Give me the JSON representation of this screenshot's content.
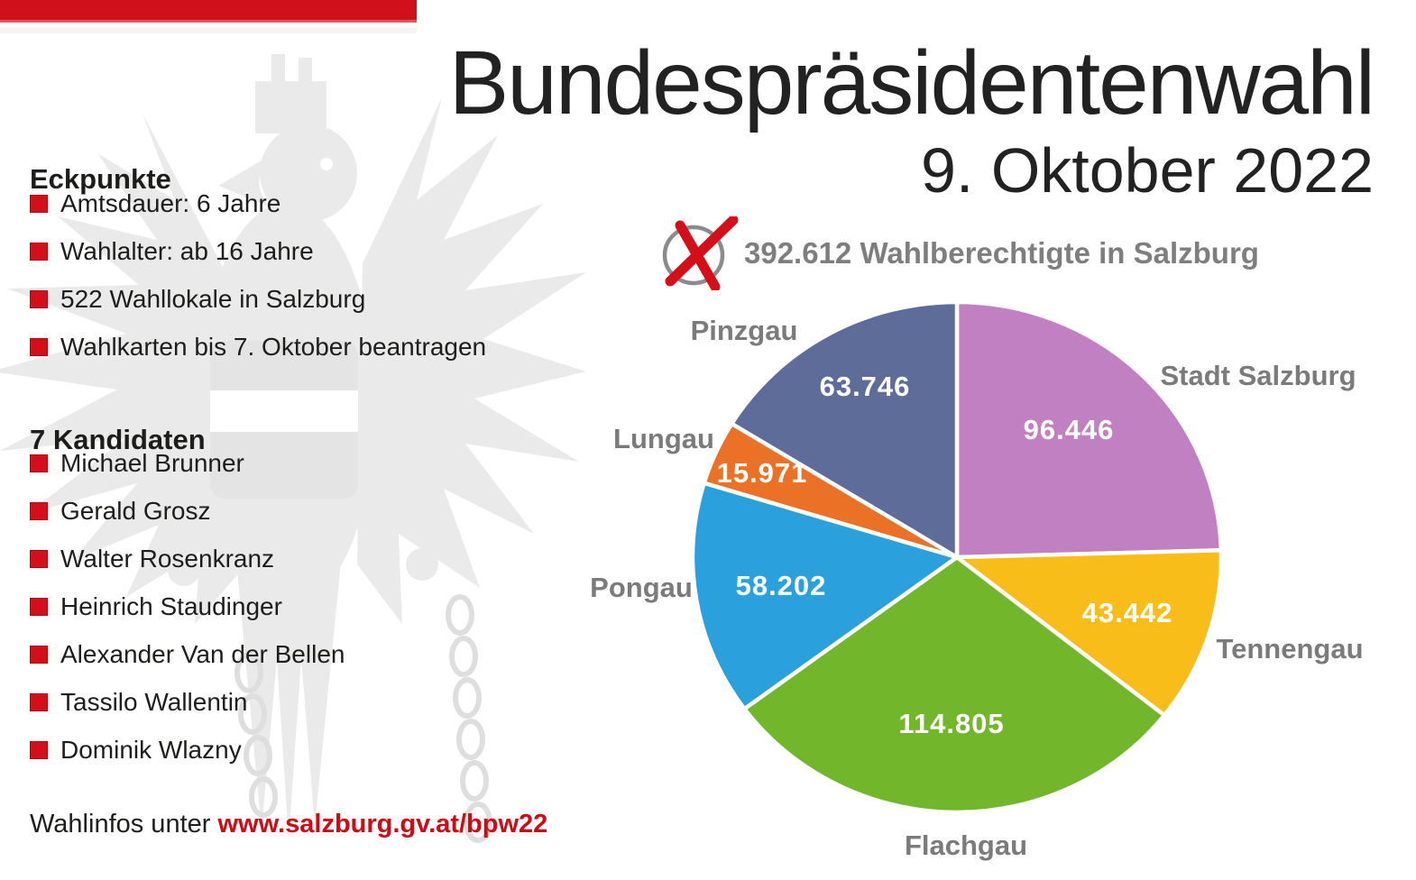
{
  "header": {
    "title": "Bundespräsidentenwahl",
    "date": "9. Oktober 2022"
  },
  "eckpunkte": {
    "heading": "Eckpunkte",
    "items": [
      "Amtsdauer: 6 Jahre",
      "Wahlalter: ab 16 Jahre",
      "522 Wahllokale in Salzburg",
      "Wahlkarten bis 7. Oktober beantragen"
    ]
  },
  "kandidaten": {
    "heading": "7 Kandidaten",
    "items": [
      "Michael Brunner",
      "Gerald Grosz",
      "Walter Rosenkranz",
      "Heinrich Staudinger",
      "Alexander Van der Bellen",
      "Tassilo Wallentin",
      "Dominik Wlazny"
    ]
  },
  "footer": {
    "text": "Wahlinfos unter",
    "link": "www.salzburg.gv.at/bpw22"
  },
  "chart_data": {
    "type": "pie",
    "title": "392.612 Wahlberechtigte in Salzburg",
    "total": 392612,
    "total_label": "392.612",
    "categories": [
      "Stadt Salzburg",
      "Tennengau",
      "Flachgau",
      "Pongau",
      "Lungau",
      "Pinzgau"
    ],
    "values": [
      96446,
      43442,
      114805,
      58202,
      15971,
      63746
    ],
    "value_labels": [
      "96.446",
      "43.442",
      "114.805",
      "58.202",
      "15.971",
      "63.746"
    ],
    "colors": [
      "#c180c1",
      "#f9bd19",
      "#72b62c",
      "#2aa0dc",
      "#ea7125",
      "#5e6c9a"
    ],
    "start_angle_deg": 0,
    "direction": "clockwise",
    "legend_position": "labels-around-pie"
  },
  "icons": {
    "ballot_x": "ballot-x-icon",
    "bullet": "red-square-bullet",
    "eagle": "austrian-eagle-watermark"
  },
  "colors": {
    "accent_red": "#d0111b",
    "label_gray": "#7b7b7b",
    "text_black": "#1d1d1b",
    "slice_stroke": "#ffffff"
  }
}
